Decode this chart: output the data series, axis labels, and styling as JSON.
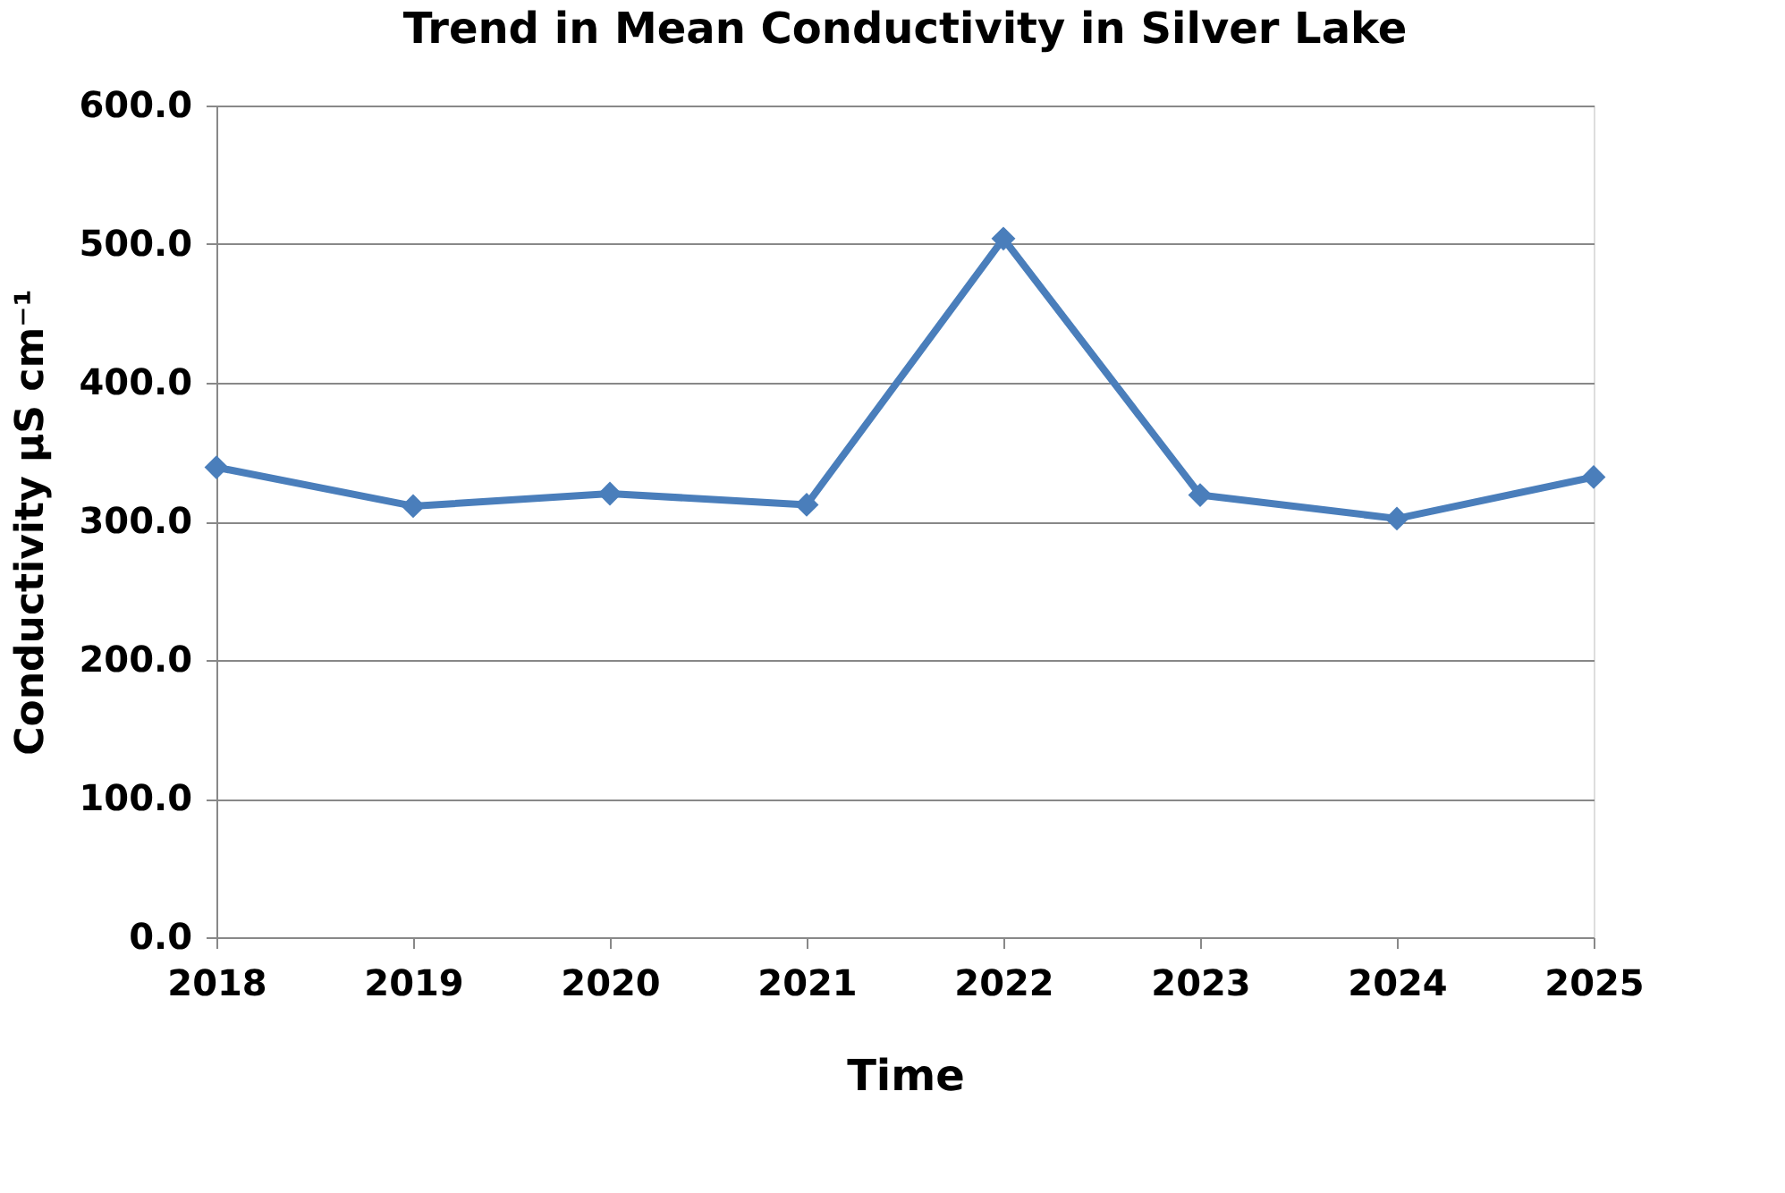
{
  "chart_data": {
    "type": "line",
    "title": "Trend in Mean Conductivity in Silver Lake",
    "xlabel": "Time",
    "ylabel": "Conductivity µS cm⁻¹",
    "categories": [
      "2018",
      "2019",
      "2020",
      "2021",
      "2022",
      "2023",
      "2024",
      "2025"
    ],
    "series": [
      {
        "color": "#4a7ebb",
        "values": [
          339,
          311,
          320,
          312,
          504,
          319,
          302,
          332
        ]
      }
    ],
    "ylim": [
      0,
      600
    ],
    "yticks": [
      {
        "value": 0,
        "label": "0.0"
      },
      {
        "value": 100,
        "label": "100.0"
      },
      {
        "value": 200,
        "label": "200.0"
      },
      {
        "value": 300,
        "label": "300.0"
      },
      {
        "value": 400,
        "label": "400.0"
      },
      {
        "value": 500,
        "label": "500.0"
      },
      {
        "value": 600,
        "label": "600.0"
      }
    ],
    "grid": "y",
    "marker": "diamond",
    "line_style": "solid"
  }
}
